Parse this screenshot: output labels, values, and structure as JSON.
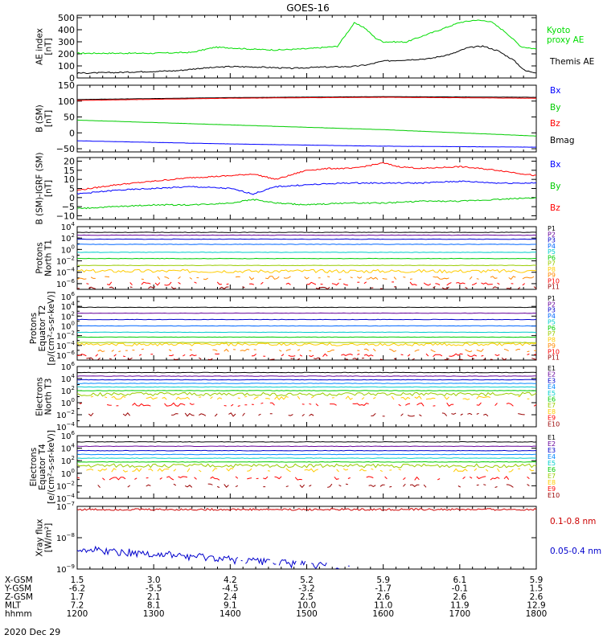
{
  "title": "GOES-16",
  "date_label": "2020 Dec 29",
  "ephemeris": {
    "row_labels": [
      "X-GSM",
      "Y-GSM",
      "Z-GSM",
      "MLT",
      "hhmm"
    ],
    "columns": [
      [
        "1.5",
        "-6.2",
        "1.7",
        "7.2",
        "1200"
      ],
      [
        "3.0",
        "-5.5",
        "2.1",
        "8.1",
        "1300"
      ],
      [
        "4.2",
        "-4.5",
        "2.4",
        "9.1",
        "1400"
      ],
      [
        "5.2",
        "-3.2",
        "2.5",
        "10.0",
        "1500"
      ],
      [
        "5.9",
        "-1.7",
        "2.6",
        "11.0",
        "1600"
      ],
      [
        "6.1",
        "-0.1",
        "2.6",
        "11.9",
        "1700"
      ],
      [
        "5.9",
        "1.5",
        "2.6",
        "12.9",
        "1800"
      ]
    ]
  },
  "panels": {
    "ae": {
      "ylabel": [
        "AE index",
        "[nT]"
      ],
      "legend": [
        {
          "text": "Kyoto",
          "color": "#00dd00"
        },
        {
          "text": "proxy AE",
          "color": "#00dd00"
        },
        {
          "text": "Themis AE",
          "color": "#000000"
        }
      ]
    },
    "bsm": {
      "ylabel": [
        "B (SM)",
        "[nT]"
      ],
      "legend": [
        {
          "text": "Bx",
          "color": "#0000ff"
        },
        {
          "text": "By",
          "color": "#00cc00"
        },
        {
          "text": "Bz",
          "color": "#ff0000"
        },
        {
          "text": "Bmag",
          "color": "#000000"
        }
      ]
    },
    "bigrf": {
      "ylabel": [
        "B (SM)-IGRF (SM)",
        "[nT]"
      ],
      "legend": [
        {
          "text": "Bx",
          "color": "#0000ff"
        },
        {
          "text": "By",
          "color": "#00cc00"
        },
        {
          "text": "Bz",
          "color": "#ff0000"
        }
      ]
    },
    "pn": {
      "ylabel": [
        "Protons",
        "North T1"
      ],
      "legend": [
        "P1",
        "P2",
        "P3",
        "P4",
        "P5",
        "P6",
        "P7",
        "P8",
        "P9",
        "P10",
        "P11"
      ]
    },
    "pe": {
      "ylabel": [
        "Protons",
        "Equator T2",
        "[p/(cm²-s-sr-keV)]"
      ],
      "legend": [
        "P1",
        "P2",
        "P3",
        "P4",
        "P5",
        "P6",
        "P7",
        "P8",
        "P9",
        "P10",
        "P11"
      ]
    },
    "en": {
      "ylabel": [
        "Electrons",
        "North T3"
      ],
      "legend": [
        "E1",
        "E2",
        "E3",
        "E4",
        "E5",
        "E6",
        "E7",
        "E8",
        "E9",
        "E10"
      ]
    },
    "ee": {
      "ylabel": [
        "Electrons",
        "Equator T4",
        "[e/(cm²-s-sr-keV)]"
      ],
      "legend": [
        "E1",
        "E2",
        "E3",
        "E4",
        "E5",
        "E6",
        "E7",
        "E8",
        "E9",
        "E10"
      ]
    },
    "xray": {
      "ylabel": [
        "Xray flux",
        "[W/m²]"
      ],
      "legend": [
        {
          "text": "0.1-0.8 nm",
          "color": "#cc0000"
        },
        {
          "text": "0.05-0.4 nm",
          "color": "#0000cc"
        }
      ]
    }
  },
  "chart_data": [
    {
      "type": "line",
      "id": "ae",
      "title": "AE index",
      "ylabel": "AE index [nT]",
      "x_unit": "hours UT",
      "xlim": [
        12,
        18
      ],
      "ylim": [
        0,
        520
      ],
      "yticks": [
        0,
        100,
        200,
        300,
        400,
        500
      ],
      "series": [
        {
          "name": "Kyoto proxy AE",
          "color": "#00dd00",
          "x": [
            12.0,
            12.5,
            13.0,
            13.5,
            13.8,
            14.0,
            14.3,
            14.6,
            15.0,
            15.4,
            15.62,
            15.75,
            15.9,
            16.0,
            16.3,
            16.5,
            16.7,
            17.0,
            17.2,
            17.4,
            17.6,
            17.8,
            18.0
          ],
          "y": [
            205,
            205,
            205,
            212,
            255,
            250,
            238,
            232,
            242,
            262,
            455,
            420,
            330,
            300,
            298,
            345,
            390,
            460,
            480,
            470,
            380,
            260,
            240
          ]
        },
        {
          "name": "Themis AE",
          "color": "#000000",
          "x": [
            12.0,
            12.5,
            13.0,
            13.3,
            13.6,
            14.0,
            14.4,
            14.8,
            15.2,
            15.6,
            15.8,
            16.0,
            16.3,
            16.6,
            16.9,
            17.1,
            17.3,
            17.5,
            17.7,
            17.85,
            18.0
          ],
          "y": [
            40,
            45,
            55,
            60,
            80,
            95,
            90,
            80,
            90,
            95,
            110,
            140,
            150,
            160,
            200,
            250,
            265,
            225,
            150,
            60,
            45
          ]
        }
      ]
    },
    {
      "type": "line",
      "id": "bsm",
      "title": "B (SM)",
      "ylabel": "B (SM) [nT]",
      "xlim": [
        12,
        18
      ],
      "ylim": [
        -60,
        150
      ],
      "yticks": [
        -50,
        0,
        50,
        100,
        150
      ],
      "series": [
        {
          "name": "Bmag",
          "color": "#000000",
          "x": [
            12,
            14,
            16,
            18
          ],
          "y": [
            105,
            111,
            114,
            112
          ]
        },
        {
          "name": "Bz",
          "color": "#ff0000",
          "x": [
            12,
            14,
            16,
            18
          ],
          "y": [
            102,
            109,
            112,
            109
          ]
        },
        {
          "name": "By",
          "color": "#00cc00",
          "x": [
            12,
            14,
            16,
            18
          ],
          "y": [
            40,
            25,
            10,
            -10
          ]
        },
        {
          "name": "Bx",
          "color": "#0000ff",
          "x": [
            12,
            14,
            16,
            18
          ],
          "y": [
            -25,
            -35,
            -42,
            -45
          ]
        }
      ]
    },
    {
      "type": "line",
      "id": "bigrf",
      "title": "B (SM)-IGRF (SM)",
      "ylabel": "B (SM)-IGRF (SM) [nT]",
      "xlim": [
        12,
        18
      ],
      "ylim": [
        -12,
        22
      ],
      "yticks": [
        -10,
        -5,
        0,
        5,
        10,
        15,
        20
      ],
      "series": [
        {
          "name": "Bz",
          "color": "#ff0000",
          "x": [
            12.0,
            12.5,
            13.0,
            13.5,
            14.0,
            14.3,
            14.6,
            15.0,
            15.3,
            15.6,
            16.0,
            16.2,
            16.5,
            17.0,
            17.5,
            18.0
          ],
          "y": [
            4,
            7,
            9,
            11,
            12,
            13,
            10,
            15,
            16,
            16,
            19,
            17,
            16,
            17,
            15,
            12
          ]
        },
        {
          "name": "Bx",
          "color": "#0000ff",
          "x": [
            12.0,
            12.5,
            13.0,
            13.5,
            14.0,
            14.3,
            14.6,
            15.0,
            15.5,
            16.0,
            16.5,
            17.0,
            17.5,
            18.0
          ],
          "y": [
            2,
            4,
            5,
            6,
            5,
            2,
            6,
            7,
            8,
            8,
            8,
            9,
            8,
            8
          ]
        },
        {
          "name": "By",
          "color": "#00cc00",
          "x": [
            12.0,
            12.5,
            13.0,
            13.5,
            14.0,
            14.3,
            14.6,
            15.0,
            15.5,
            16.0,
            16.5,
            17.0,
            17.5,
            18.0
          ],
          "y": [
            -6,
            -5,
            -4,
            -4,
            -3,
            -1,
            -3,
            -4,
            -3,
            -3,
            -2,
            -2,
            -1,
            0
          ]
        }
      ]
    },
    {
      "type": "line",
      "id": "protons_north",
      "ylabel": "Protons North T1",
      "xlim": [
        12,
        18
      ],
      "ylim_log10": [
        -7,
        4
      ],
      "ytick_exponents": [
        -6,
        -4,
        -2,
        0,
        2,
        4
      ],
      "series": [
        {
          "name": "P1",
          "color": "#000000",
          "log10": 3.0
        },
        {
          "name": "P2",
          "color": "#660099",
          "log10": 2.5
        },
        {
          "name": "P3",
          "color": "#0000cc",
          "log10": 1.8
        },
        {
          "name": "P4",
          "color": "#0066ff",
          "log10": 0.9
        },
        {
          "name": "P5",
          "color": "#00cccc",
          "log10": -0.5
        },
        {
          "name": "P6",
          "color": "#00cc00",
          "log10": -1.6
        },
        {
          "name": "P7",
          "color": "#99cc00",
          "log10": -2.8
        },
        {
          "name": "P8",
          "color": "#ffcc00",
          "log10": -3.8
        },
        {
          "name": "P9",
          "color": "#ff8800",
          "log10": -5.0
        },
        {
          "name": "P10",
          "color": "#ff0000",
          "log10": -6.0
        },
        {
          "name": "P11",
          "color": "#990000",
          "log10": -6.8
        }
      ]
    },
    {
      "type": "line",
      "id": "protons_equator",
      "ylabel": "Protons Equator T2 [p/(cm2-s-sr-keV)]",
      "xlim": [
        12,
        18
      ],
      "ylim_log10": [
        -7,
        6
      ],
      "ytick_exponents": [
        -6,
        -4,
        -2,
        0,
        2,
        4,
        6
      ],
      "series": [
        {
          "name": "P1",
          "color": "#000000",
          "log10": 3.8
        },
        {
          "name": "P2",
          "color": "#660099",
          "log10": 2.6
        },
        {
          "name": "P3",
          "color": "#0000cc",
          "log10": 1.3
        },
        {
          "name": "P4",
          "color": "#0066ff",
          "log10": 0.0
        },
        {
          "name": "P5",
          "color": "#00cccc",
          "log10": -1.3
        },
        {
          "name": "P6",
          "color": "#00cc00",
          "log10": -2.3
        },
        {
          "name": "P7",
          "color": "#99cc00",
          "log10": -3.4
        },
        {
          "name": "P8",
          "color": "#ffcc00",
          "log10": -3.8
        },
        {
          "name": "P9",
          "color": "#ff8800",
          "log10": -5.0
        },
        {
          "name": "P10",
          "color": "#ff0000",
          "log10": -6.0
        },
        {
          "name": "P11",
          "color": "#990000",
          "log10": -6.8
        }
      ]
    },
    {
      "type": "line",
      "id": "electrons_north",
      "ylabel": "Electrons North T3",
      "xlim": [
        12,
        18
      ],
      "ylim_log10": [
        -4,
        6
      ],
      "ytick_exponents": [
        -4,
        -2,
        0,
        2,
        4,
        6
      ],
      "series": [
        {
          "name": "E1",
          "color": "#000000",
          "log10": 5.0
        },
        {
          "name": "E2",
          "color": "#660099",
          "log10": 4.4
        },
        {
          "name": "E3",
          "color": "#0000cc",
          "log10": 3.8
        },
        {
          "name": "E4",
          "color": "#0088ff",
          "log10": 3.2
        },
        {
          "name": "E5",
          "color": "#00cccc",
          "log10": 2.6
        },
        {
          "name": "E6",
          "color": "#00cc00",
          "log10": 2.0
        },
        {
          "name": "E7",
          "color": "#99cc00",
          "log10": 1.4
        },
        {
          "name": "E8",
          "color": "#ffcc00",
          "log10": 0.8
        },
        {
          "name": "E9",
          "color": "#ff0000",
          "log10": -0.3
        },
        {
          "name": "E10",
          "color": "#990000",
          "log10": -2.0
        }
      ]
    },
    {
      "type": "line",
      "id": "electrons_equator",
      "ylabel": "Electrons Equator T4 [e/(cm2-s-sr-keV)]",
      "xlim": [
        12,
        18
      ],
      "ylim_log10": [
        -4,
        6
      ],
      "ytick_exponents": [
        -4,
        -2,
        0,
        2,
        4,
        6
      ],
      "series": [
        {
          "name": "E1",
          "color": "#000000",
          "log10": 5.0
        },
        {
          "name": "E2",
          "color": "#660099",
          "log10": 4.3
        },
        {
          "name": "E3",
          "color": "#0000cc",
          "log10": 3.6
        },
        {
          "name": "E4",
          "color": "#0088ff",
          "log10": 3.0
        },
        {
          "name": "E5",
          "color": "#00cccc",
          "log10": 2.4
        },
        {
          "name": "E6",
          "color": "#00cc00",
          "log10": 1.8
        },
        {
          "name": "E7",
          "color": "#99cc00",
          "log10": 1.2
        },
        {
          "name": "E8",
          "color": "#ffcc00",
          "log10": 0.5
        },
        {
          "name": "E9",
          "color": "#ff0000",
          "log10": -0.8
        },
        {
          "name": "E10",
          "color": "#990000",
          "log10": -2.0
        }
      ]
    },
    {
      "type": "line",
      "id": "xray",
      "ylabel": "Xray flux [W/m2]",
      "xlim": [
        12,
        18
      ],
      "ylim_log10": [
        -9,
        -7
      ],
      "ytick_exponents": [
        -9,
        -8,
        -7
      ],
      "series": [
        {
          "name": "0.1-0.8 nm",
          "color": "#cc0000",
          "log10": -7.1
        },
        {
          "name": "0.05-0.4 nm",
          "color": "#0000cc",
          "log10_start": -8.35,
          "log10_end": -9.0
        }
      ]
    }
  ]
}
